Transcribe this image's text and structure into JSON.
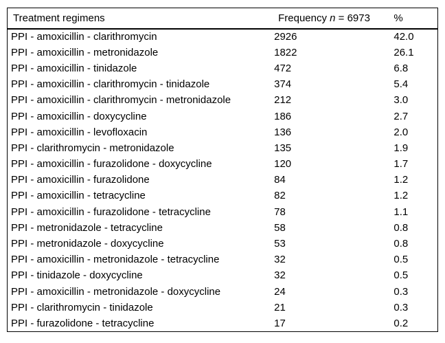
{
  "table": {
    "header": {
      "regimens": "Treatment regimens",
      "frequency_prefix": "Frequency ",
      "frequency_n": "n",
      "frequency_suffix": " = 6973",
      "percent": "%"
    },
    "total_n": 6973,
    "rows": [
      {
        "regimen": "PPI - amoxicillin - clarithromycin",
        "frequency": "2926",
        "percent": "42.0"
      },
      {
        "regimen": "PPI - amoxicillin - metronidazole",
        "frequency": "1822",
        "percent": "26.1"
      },
      {
        "regimen": "PPI - amoxicillin - tinidazole",
        "frequency": "472",
        "percent": "6.8"
      },
      {
        "regimen": "PPI - amoxicillin - clarithromycin - tinidazole",
        "frequency": "374",
        "percent": "5.4"
      },
      {
        "regimen": "PPI - amoxicillin - clarithromycin - metronidazole",
        "frequency": "212",
        "percent": "3.0"
      },
      {
        "regimen": "PPI - amoxicillin - doxycycline",
        "frequency": "186",
        "percent": "2.7"
      },
      {
        "regimen": "PPI - amoxicillin - levofloxacin",
        "frequency": "136",
        "percent": "2.0"
      },
      {
        "regimen": "PPI - clarithromycin - metronidazole",
        "frequency": "135",
        "percent": "1.9"
      },
      {
        "regimen": "PPI - amoxicillin - furazolidone - doxycycline",
        "frequency": "120",
        "percent": "1.7"
      },
      {
        "regimen": "PPI - amoxicillin - furazolidone",
        "frequency": "84",
        "percent": "1.2"
      },
      {
        "regimen": "PPI - amoxicillin - tetracycline",
        "frequency": "82",
        "percent": "1.2"
      },
      {
        "regimen": "PPI - amoxicillin - furazolidone - tetracycline",
        "frequency": "78",
        "percent": "1.1"
      },
      {
        "regimen": "PPI - metronidazole - tetracycline",
        "frequency": "58",
        "percent": "0.8"
      },
      {
        "regimen": "PPI - metronidazole - doxycycline",
        "frequency": "53",
        "percent": "0.8"
      },
      {
        "regimen": "PPI - amoxicillin - metronidazole - tetracycline",
        "frequency": "32",
        "percent": "0.5"
      },
      {
        "regimen": "PPI - tinidazole - doxycycline",
        "frequency": "32",
        "percent": "0.5"
      },
      {
        "regimen": "PPI - amoxicillin - metronidazole - doxycycline",
        "frequency": "24",
        "percent": "0.3"
      },
      {
        "regimen": "PPI - clarithromycin - tinidazole",
        "frequency": "21",
        "percent": "0.3"
      },
      {
        "regimen": "PPI - furazolidone - tetracycline",
        "frequency": "17",
        "percent": "0.2"
      }
    ]
  },
  "chart_data": {
    "type": "table",
    "title": "Treatment regimens",
    "columns": [
      "Treatment regimens",
      "Frequency n = 6973",
      "%"
    ],
    "categories": [
      "PPI - amoxicillin - clarithromycin",
      "PPI - amoxicillin - metronidazole",
      "PPI - amoxicillin - tinidazole",
      "PPI - amoxicillin - clarithromycin - tinidazole",
      "PPI - amoxicillin - clarithromycin - metronidazole",
      "PPI - amoxicillin - doxycycline",
      "PPI - amoxicillin - levofloxacin",
      "PPI - clarithromycin - metronidazole",
      "PPI - amoxicillin - furazolidone - doxycycline",
      "PPI - amoxicillin - furazolidone",
      "PPI - amoxicillin - tetracycline",
      "PPI - amoxicillin - furazolidone - tetracycline",
      "PPI - metronidazole - tetracycline",
      "PPI - metronidazole - doxycycline",
      "PPI - amoxicillin - metronidazole - tetracycline",
      "PPI - tinidazole - doxycycline",
      "PPI - amoxicillin - metronidazole - doxycycline",
      "PPI - clarithromycin - tinidazole",
      "PPI - furazolidone - tetracycline"
    ],
    "series": [
      {
        "name": "Frequency",
        "values": [
          2926,
          1822,
          472,
          374,
          212,
          186,
          136,
          135,
          120,
          84,
          82,
          78,
          58,
          53,
          32,
          32,
          24,
          21,
          17
        ]
      },
      {
        "name": "%",
        "values": [
          42.0,
          26.1,
          6.8,
          5.4,
          3.0,
          2.7,
          2.0,
          1.9,
          1.7,
          1.2,
          1.2,
          1.1,
          0.8,
          0.8,
          0.5,
          0.5,
          0.3,
          0.3,
          0.2
        ]
      }
    ]
  }
}
